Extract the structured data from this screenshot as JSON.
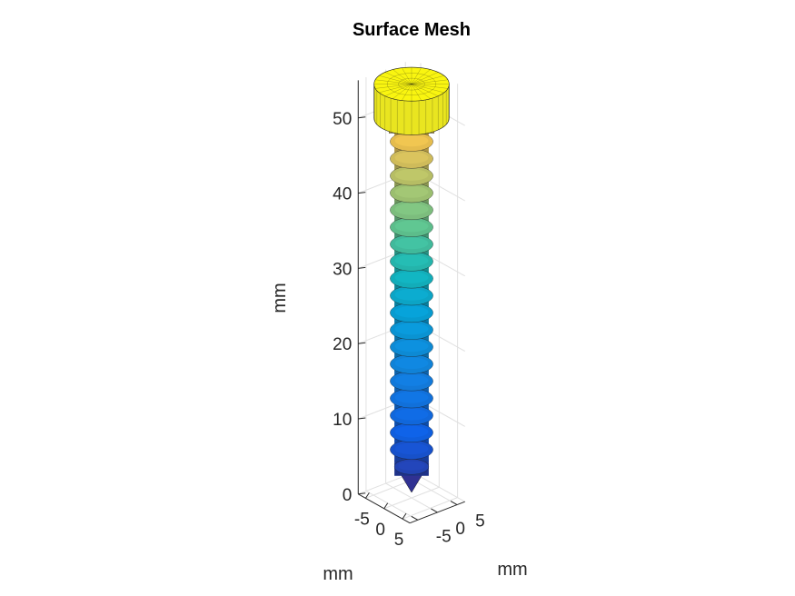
{
  "chart_data": {
    "type": "surface-mesh-3d",
    "title": "Surface Mesh",
    "object": "screw",
    "colormap": "parula",
    "color_by": "z",
    "grid": true,
    "box": false,
    "xlabel": "mm",
    "ylabel": "mm",
    "zlabel": "mm",
    "xlim": [
      -7,
      7
    ],
    "ylim": [
      -7,
      7
    ],
    "zlim": [
      0,
      55
    ],
    "xticks": [
      -5,
      0,
      5
    ],
    "yticks": [
      -5,
      0,
      5
    ],
    "zticks": [
      0,
      10,
      20,
      30,
      40,
      50
    ],
    "xtick_labels": [
      "-5",
      "0",
      "5"
    ],
    "ytick_labels": [
      "-5",
      "0",
      "5"
    ],
    "ztick_labels": [
      "0",
      "10",
      "20",
      "30",
      "40",
      "50"
    ],
    "geometry": {
      "tip_z": 0,
      "thread_start_z": 3,
      "thread_end_z": 48.5,
      "thread_count": 20,
      "shank_radius": 3.2,
      "thread_radius": 4.0,
      "neck_z": [
        48.5,
        50.5
      ],
      "neck_radius": 4.2,
      "head_z": [
        50.5,
        55
      ],
      "head_radius": 7
    }
  }
}
